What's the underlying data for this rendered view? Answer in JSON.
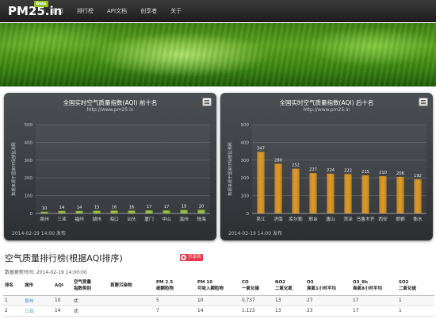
{
  "nav": {
    "logo_text": "PM25.in",
    "logo_badge": "Beta",
    "items": [
      "首页",
      "排行榜",
      "API文档",
      "创享者",
      "关于"
    ]
  },
  "colors": {
    "bar_top": "#9acd32",
    "bar_bottom": "#e09a25",
    "panel_bg": "#3a3d41"
  },
  "charts": {
    "left": {
      "title": "全国实时空气质量指数(AQI) 前十名",
      "subtitle": "http://www.pm25.in",
      "ylabel": "数据来源于国家环保部监测网",
      "footer": "2014-02-19 14:00 发布"
    },
    "right": {
      "title": "全国实时空气质量指数(AQI) 后十名",
      "subtitle": "http://www.pm25.in",
      "ylabel": "数据来源于国家环保部监测网",
      "footer": "2014-02-19 14:00 发布"
    }
  },
  "chart_data": [
    {
      "type": "bar",
      "title": "全国实时空气质量指数(AQI) 前十名",
      "subtitle": "http://www.pm25.in",
      "ylabel": "数据来源于国家环保部监测网",
      "categories": [
        "泉州",
        "三亚",
        "福州",
        "湖州",
        "海口",
        "汕头",
        "厦门",
        "中山",
        "温州",
        "珠海"
      ],
      "values": [
        10,
        14,
        14,
        15,
        16,
        16,
        17,
        17,
        19,
        20
      ],
      "yticks": [
        0,
        100,
        200,
        300,
        400,
        500
      ],
      "ylim": [
        0,
        500
      ],
      "grid": true,
      "bar_color": "#9acd32"
    },
    {
      "type": "bar",
      "title": "全国实时空气质量指数(AQI) 后十名",
      "subtitle": "http://www.pm25.in",
      "ylabel": "数据来源于国家环保部监测网",
      "categories": [
        "吴江",
        "济南",
        "库尔勒",
        "邢台",
        "唐山",
        "菏泽",
        "乌鲁木齐",
        "西安",
        "邯郸",
        "衡水"
      ],
      "values": [
        347,
        280,
        252,
        227,
        224,
        222,
        215,
        210,
        206,
        192
      ],
      "yticks": [
        0,
        100,
        200,
        300,
        400,
        500
      ],
      "ylim": [
        0,
        500
      ],
      "grid": true,
      "bar_color": "#e09a25"
    }
  ],
  "ranking": {
    "title": "空气质量排行榜(根据AQI排序)",
    "share_label": "分享到",
    "update_label": "数据更新时间:",
    "update_time": "2014-02-19 14:00:00",
    "headers": [
      [
        "排名",
        ""
      ],
      [
        "城市",
        ""
      ],
      [
        "AQI",
        ""
      ],
      [
        "空气质量",
        "指数类别"
      ],
      [
        "首要污染物",
        ""
      ],
      [
        "PM 2.5",
        "细颗粒物"
      ],
      [
        "PM 10",
        "可吸入颗粒物"
      ],
      [
        "CO",
        "一氧化碳"
      ],
      [
        "NO2",
        "二氧化氮"
      ],
      [
        "O3",
        "臭氧1小时平均"
      ],
      [
        "O3_8h",
        "臭氧8小时平均"
      ],
      [
        "SO2",
        "二氧化硫"
      ]
    ],
    "rows": [
      [
        "1",
        "泉州",
        "10",
        "优",
        "",
        "5",
        "10",
        "0.737",
        "13",
        "27",
        "17",
        "1"
      ],
      [
        "2",
        "三亚",
        "14",
        "优",
        "",
        "7",
        "14",
        "1.123",
        "13",
        "23",
        "17",
        "1"
      ]
    ]
  }
}
